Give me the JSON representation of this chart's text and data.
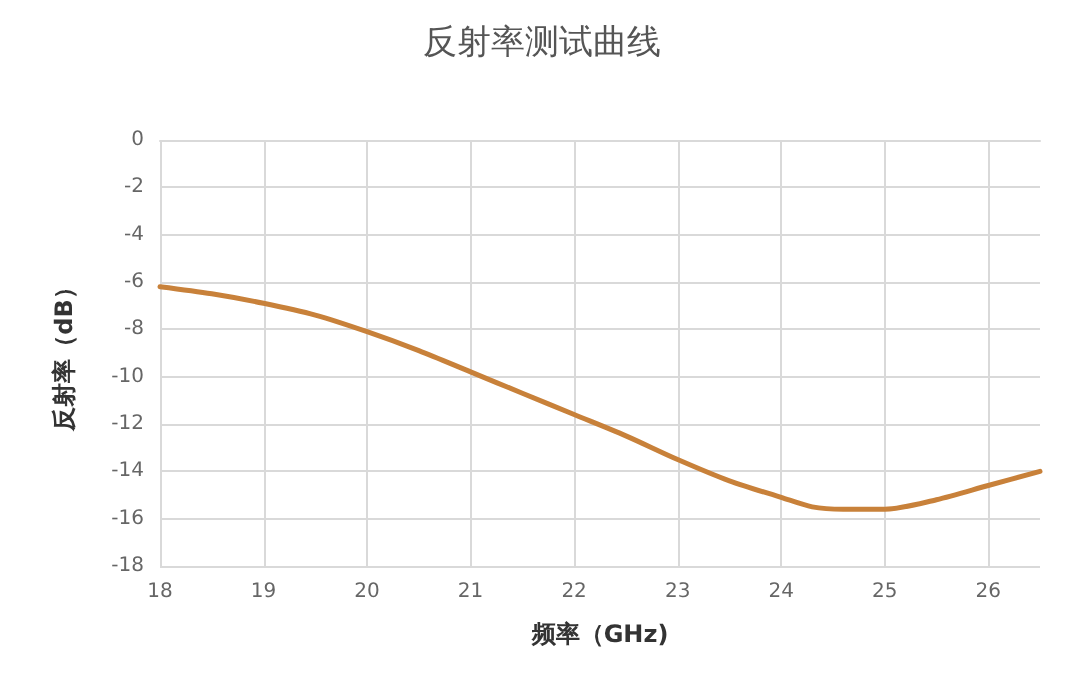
{
  "chart_data": {
    "type": "line",
    "title": "反射率测试曲线",
    "xlabel": "频率（GHz)",
    "ylabel": "反射率（dB）",
    "series": [
      {
        "color": "#c8813a",
        "x": [
          18,
          18.5,
          19,
          19.5,
          20,
          20.5,
          21,
          21.5,
          22,
          22.5,
          23,
          23.5,
          24,
          24.3,
          24.6,
          25,
          25.5,
          26,
          26.5
        ],
        "values": [
          -6.2,
          -6.5,
          -6.9,
          -7.4,
          -8.1,
          -8.9,
          -9.8,
          -10.7,
          -11.6,
          -12.5,
          -13.5,
          -14.4,
          -15.1,
          -15.5,
          -15.6,
          -15.6,
          -15.2,
          -14.6,
          -14.0
        ]
      }
    ],
    "xlim": [
      18,
      26.5
    ],
    "xticks": [
      18,
      19,
      20,
      21,
      22,
      23,
      24,
      25,
      26
    ],
    "ylim": [
      -18,
      0
    ],
    "yticks": [
      -18,
      -16,
      -14,
      -12,
      -10,
      -8,
      -6,
      -4,
      -2,
      0
    ],
    "grid": true,
    "marker": "none",
    "line_style": "solid"
  }
}
